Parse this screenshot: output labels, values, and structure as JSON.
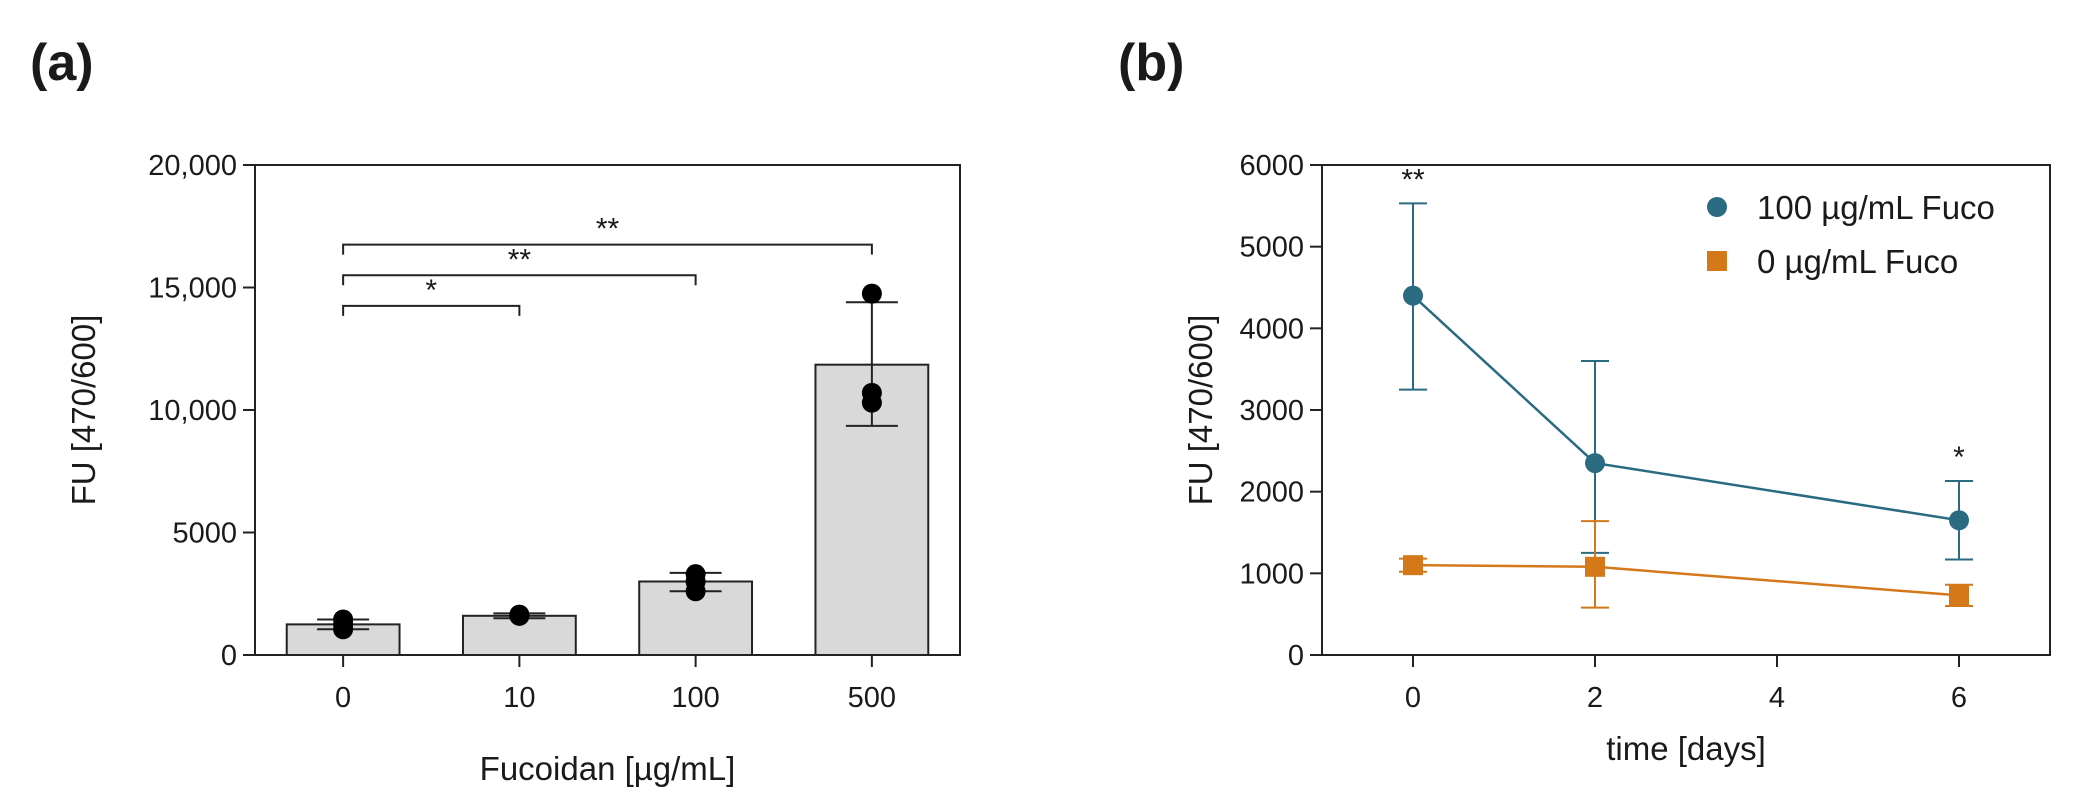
{
  "panels": {
    "a": {
      "letter": "(a)"
    },
    "b": {
      "letter": "(b)"
    }
  },
  "chart_data": [
    {
      "type": "bar",
      "panel": "(a)",
      "categories": [
        "0",
        "10",
        "100",
        "500"
      ],
      "values": [
        1250,
        1600,
        3000,
        11850
      ],
      "error": [
        [
          1050,
          1450
        ],
        [
          1500,
          1700
        ],
        [
          2600,
          3350
        ],
        [
          9350,
          14400
        ]
      ],
      "points": [
        [
          1050,
          1250,
          1450
        ],
        [
          1600,
          1650,
          1600
        ],
        [
          2600,
          3000,
          3300
        ],
        [
          10300,
          10700,
          14750
        ]
      ],
      "bar_color": "#d9d9d9",
      "ylim": [
        0,
        20000
      ],
      "yticks": [
        0,
        5000,
        10000,
        15000,
        20000
      ],
      "ytick_labels": [
        "0",
        "5000",
        "10,000",
        "15,000",
        "20,000"
      ],
      "xlabel": "Fucoidan [µg/mL]",
      "ylabel": "FU [470/600]",
      "significance": [
        {
          "from": "0",
          "to": "10",
          "label": "*",
          "y": 14250
        },
        {
          "from": "0",
          "to": "100",
          "label": "**",
          "y": 15500
        },
        {
          "from": "0",
          "to": "500",
          "label": "**",
          "y": 16750
        }
      ]
    },
    {
      "type": "line",
      "panel": "(b)",
      "xlabel": "time [days]",
      "ylabel": "FU [470/600]",
      "xlim": [
        -1,
        7
      ],
      "ylim": [
        0,
        6000
      ],
      "xticks": [
        0,
        2,
        4,
        6
      ],
      "yticks": [
        0,
        1000,
        2000,
        3000,
        4000,
        5000,
        6000
      ],
      "legend_position": "top-right",
      "series": [
        {
          "name": "100 µg/mL Fuco",
          "color": "#2a6b82",
          "marker": "circle",
          "x": [
            0,
            2,
            6
          ],
          "y": [
            4400,
            2350,
            1650
          ],
          "err_low": [
            3250,
            1250,
            1170
          ],
          "err_high": [
            5530,
            3600,
            2130
          ]
        },
        {
          "name": "0 µg/mL Fuco",
          "color": "#d4781a",
          "marker": "square",
          "x": [
            0,
            2,
            6
          ],
          "y": [
            1100,
            1080,
            730
          ],
          "err_low": [
            1020,
            580,
            600
          ],
          "err_high": [
            1180,
            1640,
            860
          ]
        }
      ],
      "annotations": [
        {
          "x": 0,
          "y": 5530,
          "text": "**"
        },
        {
          "x": 6,
          "y": 2130,
          "text": "*"
        }
      ]
    }
  ]
}
